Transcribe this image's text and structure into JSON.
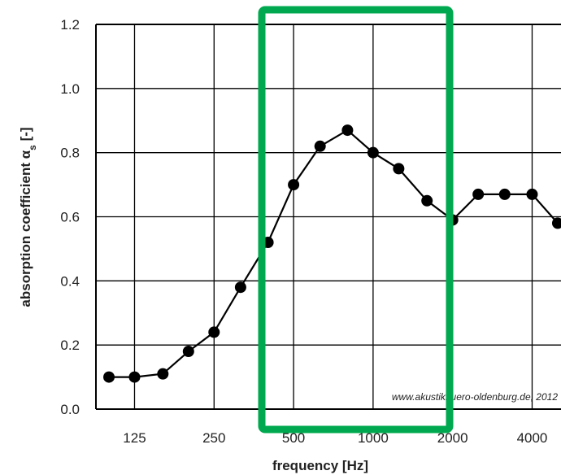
{
  "chart_data": {
    "type": "line",
    "xlabel": "frequency [Hz]",
    "ylabel_main": "absorption coefficient α",
    "ylabel_sub": "s",
    "ylabel_unit": " [-]",
    "ylim": [
      0.0,
      1.2
    ],
    "yticks": [
      "0.0",
      "0.2",
      "0.4",
      "0.6",
      "0.8",
      "1.0",
      "1.2"
    ],
    "x_scale": "log (1/3-octave bands)",
    "xticks": [
      "125",
      "250",
      "500",
      "1000",
      "2000",
      "4000"
    ],
    "grid": true,
    "series": [
      {
        "x": [
          100,
          125,
          160,
          200,
          250,
          315,
          400,
          500,
          630,
          800,
          1000,
          1250,
          1600,
          2000,
          2500,
          3150,
          4000,
          5000
        ],
        "values": [
          0.1,
          0.1,
          0.11,
          0.18,
          0.24,
          0.38,
          0.52,
          0.7,
          0.82,
          0.87,
          0.8,
          0.75,
          0.65,
          0.59,
          0.67,
          0.67,
          0.67,
          0.58
        ]
      }
    ],
    "annotation": "www.akustikbuero-oldenburg.de, 2012",
    "highlight_color": "#00a94f",
    "line_color": "#000000"
  }
}
